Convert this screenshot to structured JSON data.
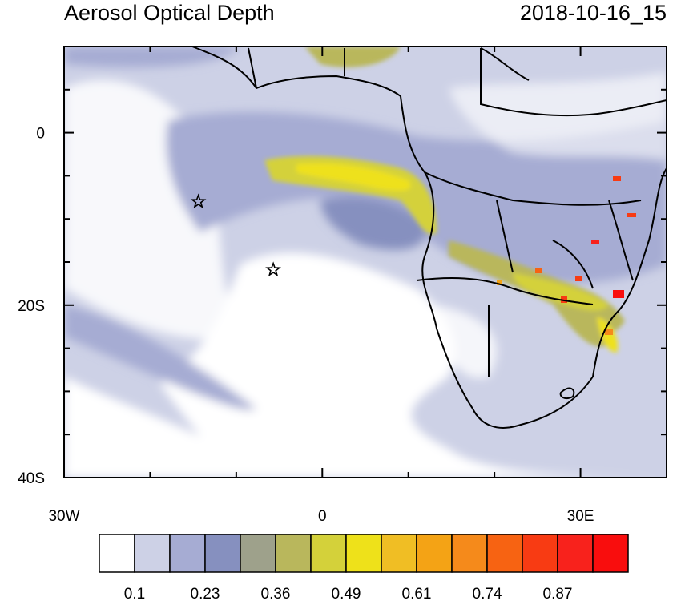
{
  "title_left": "Aerosol Optical Depth",
  "title_right": "2018-10-16_15",
  "map": {
    "lon_range": [
      -30,
      40
    ],
    "lat_range": [
      -40,
      10
    ],
    "x_ticks": [
      {
        "lon": -30,
        "label": "30W"
      },
      {
        "lon": 0,
        "label": "0"
      },
      {
        "lon": 30,
        "label": "30E"
      }
    ],
    "y_ticks": [
      {
        "lat": 0,
        "label": "0"
      },
      {
        "lat": -20,
        "label": "20S"
      },
      {
        "lat": -40,
        "label": "40S"
      }
    ],
    "markers": [
      {
        "type": "star",
        "lon": -14.4,
        "lat": -8.0
      },
      {
        "type": "star",
        "lon": -5.7,
        "lat": -15.9
      }
    ]
  },
  "colorbar": {
    "colors": [
      "#ffffff",
      "#cdd1e6",
      "#a6acd3",
      "#8690bf",
      "#9ea18b",
      "#b9b75c",
      "#d4d13a",
      "#eee11a",
      "#f0be24",
      "#f4a315",
      "#f58a1b",
      "#f76312",
      "#f83b13",
      "#f8221c",
      "#f90d0d"
    ],
    "labels": [
      "0.1",
      "0.23",
      "0.36",
      "0.49",
      "0.61",
      "0.74",
      "0.87"
    ]
  }
}
